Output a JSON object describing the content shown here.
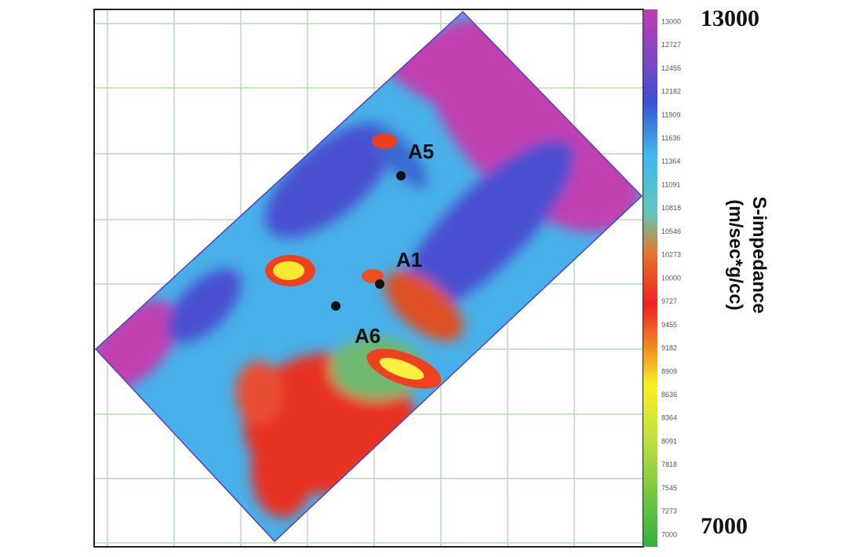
{
  "colorbar": {
    "title_lines": [
      "S-impedance",
      "(m/sec*g/cc)"
    ],
    "max_label": "13000",
    "min_label": "7000",
    "ticks": [
      13000,
      12727,
      12455,
      12182,
      11909,
      11636,
      11364,
      11091,
      10818,
      10546,
      10273,
      10000,
      9727,
      9455,
      9182,
      8909,
      8636,
      8364,
      8091,
      7818,
      7545,
      7273,
      7000
    ]
  },
  "wells": [
    {
      "label": "A5"
    },
    {
      "label": "A1"
    },
    {
      "label": "A6"
    }
  ]
}
